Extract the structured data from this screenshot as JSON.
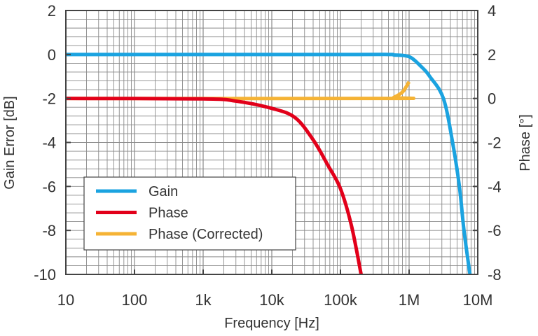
{
  "chart_data": {
    "type": "line",
    "xlabel": "Frequency [Hz]",
    "ylabel": "Gain Error [dB]",
    "y2label": "Phase [°]",
    "xscale": "log",
    "xlim": [
      10,
      10000000
    ],
    "ylim": [
      -10,
      2
    ],
    "y2lim": [
      -8,
      4
    ],
    "grid": true,
    "legend_position": "bottom-left",
    "xticks": [
      {
        "v": 10,
        "label": "10"
      },
      {
        "v": 100,
        "label": "100"
      },
      {
        "v": 1000,
        "label": "1k"
      },
      {
        "v": 10000,
        "label": "10k"
      },
      {
        "v": 100000,
        "label": "100k"
      },
      {
        "v": 1000000,
        "label": "1M"
      },
      {
        "v": 10000000,
        "label": "10M"
      }
    ],
    "yticks": [
      {
        "v": 2,
        "label": "2"
      },
      {
        "v": 0,
        "label": "0"
      },
      {
        "v": -2,
        "label": "-2"
      },
      {
        "v": -4,
        "label": "-4"
      },
      {
        "v": -6,
        "label": "-6"
      },
      {
        "v": -8,
        "label": "-8"
      },
      {
        "v": -10,
        "label": "-10"
      }
    ],
    "y2ticks": [
      {
        "v": 4,
        "label": "4"
      },
      {
        "v": 2,
        "label": "2"
      },
      {
        "v": 0,
        "label": "0"
      },
      {
        "v": -2,
        "label": "-2"
      },
      {
        "v": -4,
        "label": "-4"
      },
      {
        "v": -6,
        "label": "-6"
      },
      {
        "v": -8,
        "label": "-8"
      }
    ],
    "series": [
      {
        "name": "Gain",
        "axis": "left",
        "color": "#1ba3e0",
        "points": [
          [
            10,
            0
          ],
          [
            100000,
            0
          ],
          [
            500000,
            0
          ],
          [
            600000,
            -0.02
          ],
          [
            1000000,
            -0.1
          ],
          [
            1500000,
            -0.55
          ],
          [
            2000000,
            -1.0
          ],
          [
            3160000,
            -2
          ],
          [
            4300000,
            -4
          ],
          [
            5400000,
            -6
          ],
          [
            6300000,
            -8
          ],
          [
            7700000,
            -10
          ]
        ]
      },
      {
        "name": "Phase (Corrected)",
        "axis": "right",
        "color": "#f5b335",
        "points": [
          [
            10,
            0
          ],
          [
            500000,
            0
          ],
          [
            600000,
            0.05
          ],
          [
            800000,
            0.29
          ],
          [
            1000000,
            0.76
          ]
        ]
      },
      {
        "name": "Phase",
        "axis": "right",
        "color": "#e2001a",
        "points": [
          [
            10,
            0
          ],
          [
            1000,
            -0.02
          ],
          [
            3000,
            -0.12
          ],
          [
            10000,
            -0.45
          ],
          [
            21800,
            -0.87
          ],
          [
            40000,
            -1.88
          ],
          [
            66000,
            -3.05
          ],
          [
            100000,
            -4.1
          ],
          [
            145000,
            -5.8
          ],
          [
            200000,
            -8
          ]
        ]
      }
    ],
    "legend": [
      {
        "label": "Gain",
        "color": "#1ba3e0"
      },
      {
        "label": "Phase",
        "color": "#e2001a"
      },
      {
        "label": "Phase (Corrected)",
        "color": "#f5b335"
      }
    ]
  }
}
